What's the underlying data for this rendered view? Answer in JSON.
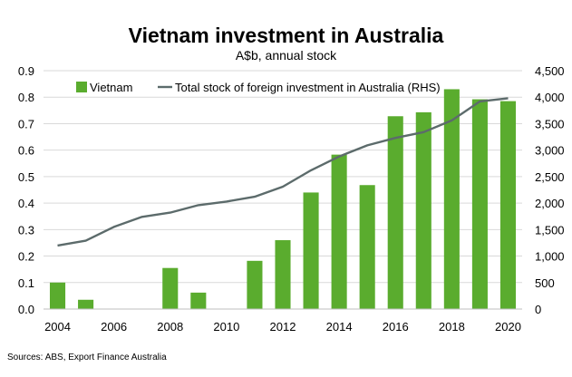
{
  "chart_data": {
    "type": "bar+line",
    "title": "Vietnam investment in Australia",
    "subtitle": "A$b, annual stock",
    "categories": [
      "2004",
      "2005",
      "2006",
      "2007",
      "2008",
      "2009",
      "2010",
      "2011",
      "2012",
      "2013",
      "2014",
      "2015",
      "2016",
      "2017",
      "2018",
      "2019",
      "2020"
    ],
    "x_tick_labels": [
      "2004",
      "2006",
      "2008",
      "2010",
      "2012",
      "2014",
      "2016",
      "2018",
      "2020"
    ],
    "series": [
      {
        "name": "Vietnam",
        "type": "bar",
        "axis": "left",
        "color": "#5aac2e",
        "values": [
          0.1,
          0.035,
          0,
          0,
          0.155,
          0.062,
          0,
          0.182,
          0.26,
          0.44,
          0.583,
          0.468,
          0.728,
          0.743,
          0.83,
          0.792,
          0.785
        ]
      },
      {
        "name": "Total stock of foreign investment in Australia (RHS)",
        "type": "line",
        "axis": "right",
        "color": "#5c6b6b",
        "values": [
          1200,
          1290,
          1550,
          1740,
          1820,
          1960,
          2030,
          2120,
          2310,
          2620,
          2880,
          3090,
          3230,
          3340,
          3560,
          3920,
          3980
        ]
      }
    ],
    "y_left": {
      "min": 0,
      "max": 0.9,
      "ticks": [
        "0.0",
        "0.1",
        "0.2",
        "0.3",
        "0.4",
        "0.5",
        "0.6",
        "0.7",
        "0.8",
        "0.9"
      ]
    },
    "y_right": {
      "min": 0,
      "max": 4500,
      "ticks": [
        "0",
        "500",
        "1,000",
        "1,500",
        "2,000",
        "2,500",
        "3,000",
        "3,500",
        "4,000",
        "4,500"
      ]
    },
    "grid": "horizontal",
    "legend_position": "top"
  },
  "source": "Sources: ABS, Export Finance Australia"
}
